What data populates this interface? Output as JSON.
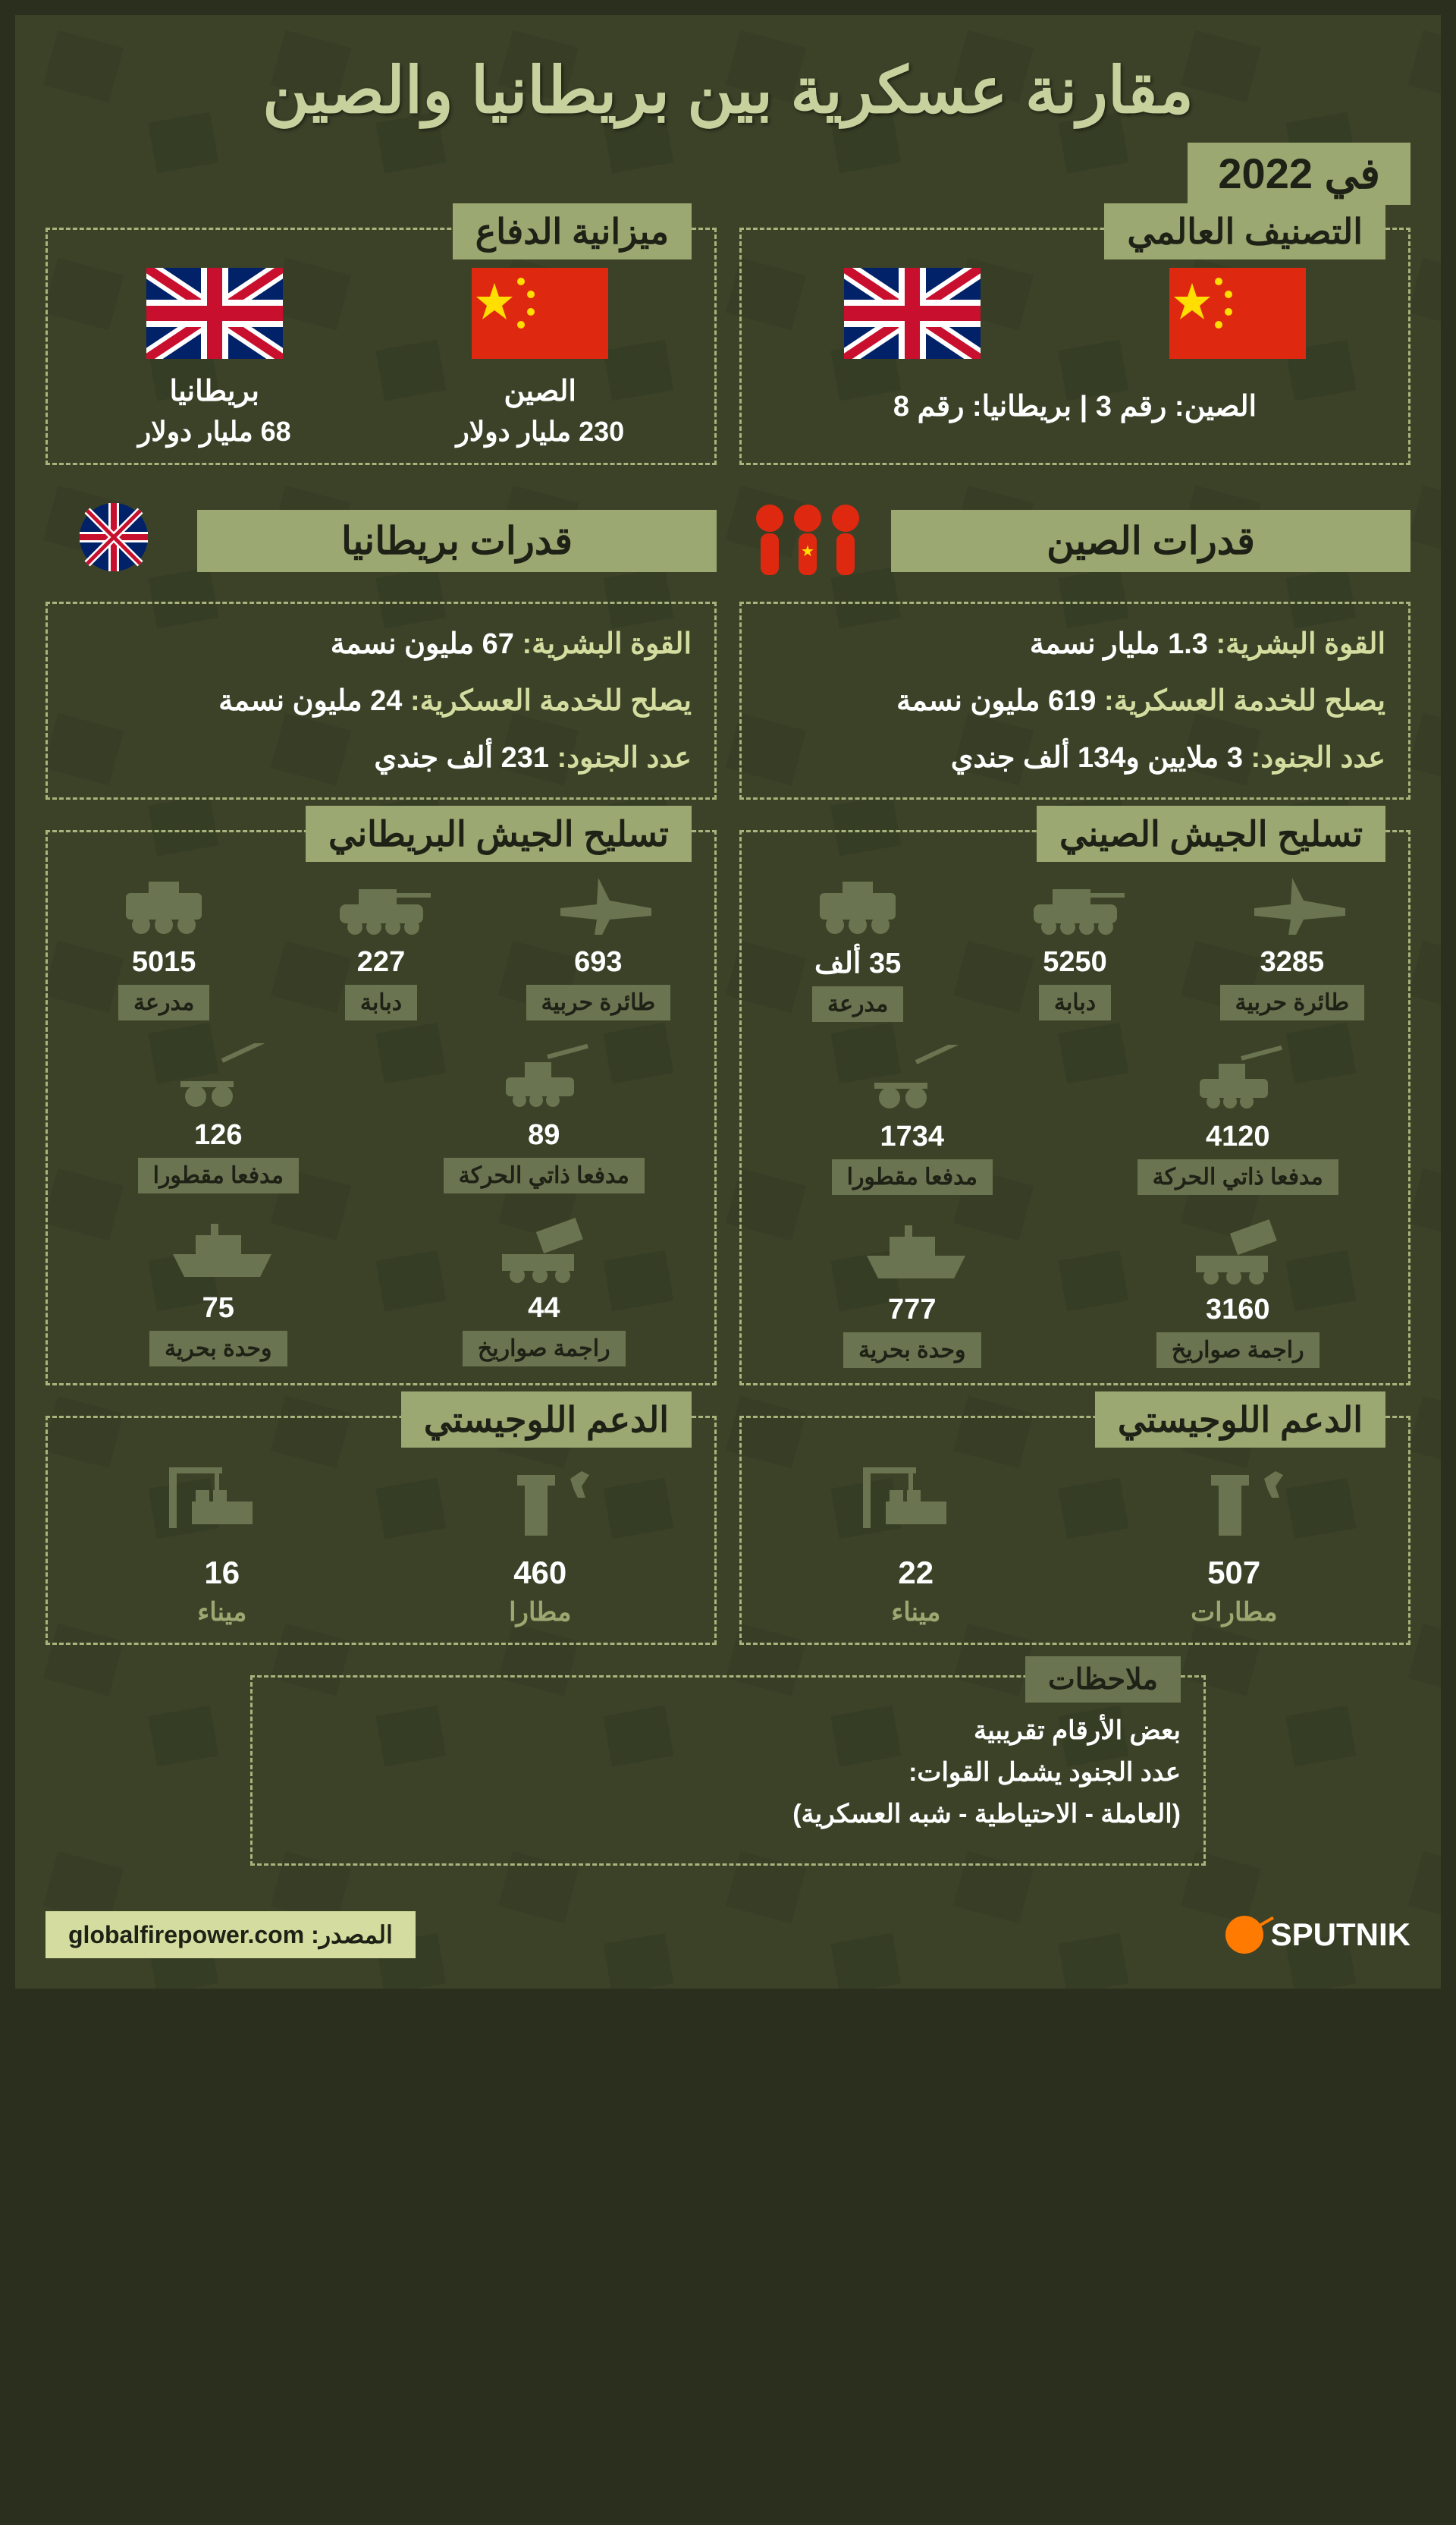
{
  "title": "مقارنة عسكرية بين بريطانيا والصين",
  "year": "في 2022",
  "colors": {
    "bg": "#3b4228",
    "accent": "#9ba871",
    "text_light": "#c7d19e",
    "icon_fill": "#6b7450",
    "dash": "#a8b47c",
    "sputnik_orange": "#ff7a00",
    "source_bg": "#d4dd9f"
  },
  "ranking": {
    "title": "التصنيف العالمي",
    "text": "الصين: رقم 3 | بريطانيا: رقم 8"
  },
  "budget": {
    "title": "ميزانية الدفاع",
    "china": {
      "name": "الصين",
      "value": "230 مليار دولار"
    },
    "uk": {
      "name": "بريطانيا",
      "value": "68 مليار دولار"
    }
  },
  "capabilities": {
    "china": {
      "title": "قدرات الصين",
      "stats": [
        {
          "label": "القوة البشرية:",
          "value": "1.3 مليار نسمة"
        },
        {
          "label": "يصلح للخدمة العسكرية:",
          "value": "619 مليون نسمة"
        },
        {
          "label": "عدد الجنود:",
          "value": "3 ملايين و134 ألف جندي"
        }
      ]
    },
    "uk": {
      "title": "قدرات بريطانيا",
      "stats": [
        {
          "label": "القوة البشرية:",
          "value": "67 مليون نسمة"
        },
        {
          "label": "يصلح للخدمة العسكرية:",
          "value": "24 مليون نسمة"
        },
        {
          "label": "عدد الجنود:",
          "value": "231 ألف جندي"
        }
      ]
    }
  },
  "armament": {
    "china": {
      "title": "تسليح الجيش الصيني",
      "row1": [
        {
          "value": "3285",
          "label": "طائرة حربية",
          "icon": "jet"
        },
        {
          "value": "5250",
          "label": "دبابة",
          "icon": "tank"
        },
        {
          "value": "35 ألف",
          "label": "مدرعة",
          "icon": "apc"
        }
      ],
      "row2": [
        {
          "value": "4120",
          "label": "مدفعا ذاتي الحركة",
          "icon": "sp_artillery"
        },
        {
          "value": "1734",
          "label": "مدفعا مقطورا",
          "icon": "towed"
        }
      ],
      "row3": [
        {
          "value": "3160",
          "label": "راجمة صواريخ",
          "icon": "rocket"
        },
        {
          "value": "777",
          "label": "وحدة بحرية",
          "icon": "ship"
        }
      ]
    },
    "uk": {
      "title": "تسليح الجيش البريطاني",
      "row1": [
        {
          "value": "693",
          "label": "طائرة حربية",
          "icon": "jet"
        },
        {
          "value": "227",
          "label": "دبابة",
          "icon": "tank"
        },
        {
          "value": "5015",
          "label": "مدرعة",
          "icon": "apc"
        }
      ],
      "row2": [
        {
          "value": "89",
          "label": "مدفعا ذاتي الحركة",
          "icon": "sp_artillery"
        },
        {
          "value": "126",
          "label": "مدفعا مقطورا",
          "icon": "towed"
        }
      ],
      "row3": [
        {
          "value": "44",
          "label": "راجمة صواريخ",
          "icon": "rocket"
        },
        {
          "value": "75",
          "label": "وحدة بحرية",
          "icon": "ship"
        }
      ]
    }
  },
  "logistics": {
    "china": {
      "title": "الدعم اللوجيستي",
      "items": [
        {
          "value": "507",
          "label": "مطارات",
          "icon": "airport"
        },
        {
          "value": "22",
          "label": "ميناء",
          "icon": "port"
        }
      ]
    },
    "uk": {
      "title": "الدعم اللوجيستي",
      "items": [
        {
          "value": "460",
          "label": "مطارا",
          "icon": "airport"
        },
        {
          "value": "16",
          "label": "ميناء",
          "icon": "port"
        }
      ]
    }
  },
  "notes": {
    "title": "ملاحظات",
    "lines": [
      "بعض الأرقام تقريبية",
      "عدد الجنود يشمل القوات:",
      "(العاملة - الاحتياطية - شبه العسكرية)"
    ]
  },
  "footer": {
    "source": "المصدر: globalfirepower.com",
    "brand": "SPUTNIK"
  }
}
